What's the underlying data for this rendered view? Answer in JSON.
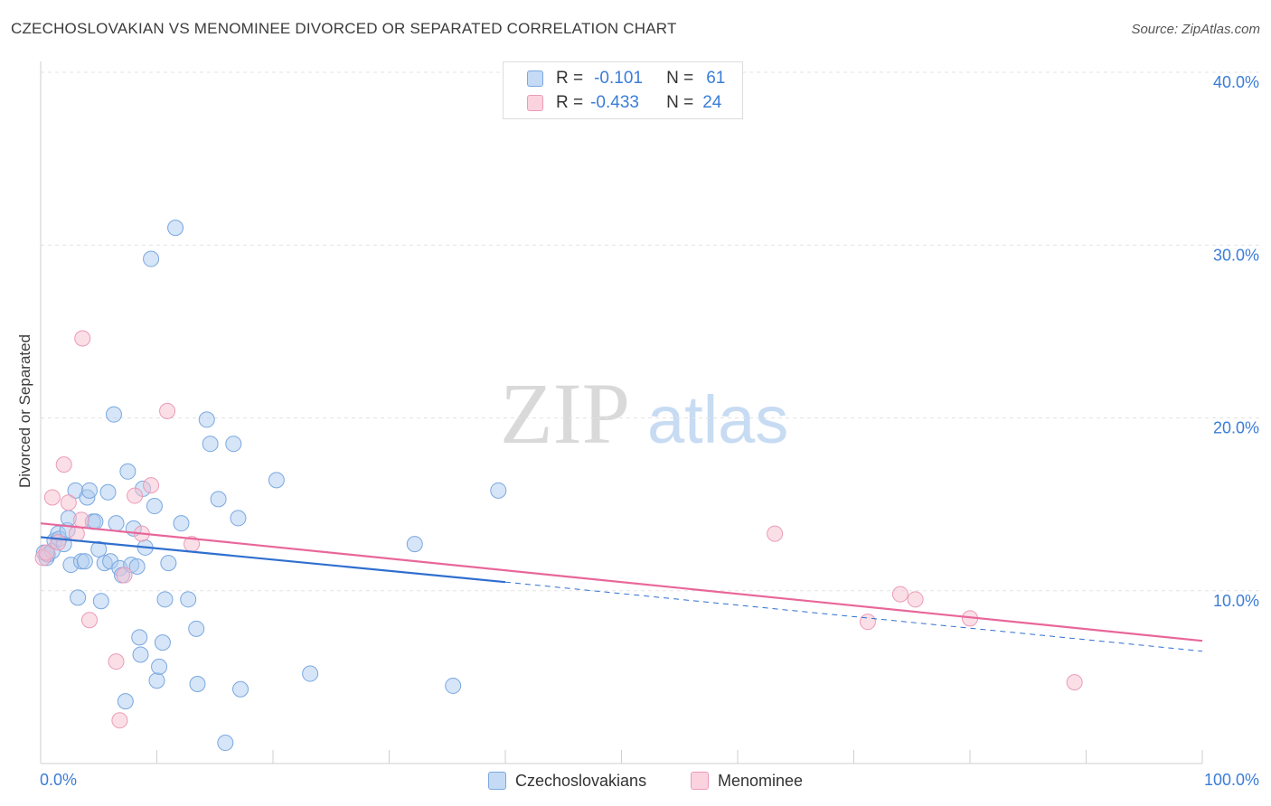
{
  "title": "CZECHOSLOVAKIAN VS MENOMINEE DIVORCED OR SEPARATED CORRELATION CHART",
  "source": "Source: ZipAtlas.com",
  "watermark": {
    "zip": "ZIP",
    "atlas": "atlas"
  },
  "legend": {
    "rows": [
      {
        "r_label": "R =",
        "r_value": "-0.101",
        "n_label": "N =",
        "n_value": "61",
        "color": "#aecbef"
      },
      {
        "r_label": "R =",
        "r_value": "-0.433",
        "n_label": "N =",
        "n_value": "24",
        "color": "#f7bfd0"
      }
    ]
  },
  "bottom_legend": [
    {
      "label": "Czechoslovakians",
      "color": "#aecbef"
    },
    {
      "label": "Menominee",
      "color": "#f7bfd0"
    }
  ],
  "chart_data": {
    "type": "scatter",
    "title": "CZECHOSLOVAKIAN VS MENOMINEE DIVORCED OR SEPARATED CORRELATION CHART",
    "xlabel": "",
    "ylabel": "Divorced or Separated",
    "xlim": [
      0,
      100
    ],
    "ylim": [
      0,
      40
    ],
    "x_tick_labels": [
      "0.0%",
      "100.0%"
    ],
    "y_ticks": [
      10,
      20,
      30,
      40
    ],
    "y_tick_labels": [
      "10.0%",
      "20.0%",
      "30.0%",
      "40.0%"
    ],
    "grid": "horizontal dashed",
    "colors": {
      "blue_line": "#2f6fcf",
      "pink_line": "#e8679a",
      "axis_text": "#3b7dd8"
    },
    "series": [
      {
        "name": "Czechoslovakians",
        "color": "#aecbef",
        "stroke": "#7aa8e0",
        "trend": {
          "x": [
            0,
            40
          ],
          "y": [
            13.1,
            10.5
          ],
          "dashed_to": [
            100,
            6.5
          ]
        },
        "points": [
          [
            0.3,
            12.2
          ],
          [
            0.5,
            11.9
          ],
          [
            0.6,
            12.1
          ],
          [
            1.0,
            12.3
          ],
          [
            1.2,
            12.9
          ],
          [
            1.5,
            13.3
          ],
          [
            1.6,
            13.0
          ],
          [
            2.0,
            12.7
          ],
          [
            2.3,
            13.5
          ],
          [
            2.4,
            14.2
          ],
          [
            2.6,
            11.5
          ],
          [
            3.0,
            15.8
          ],
          [
            3.2,
            9.6
          ],
          [
            3.5,
            11.7
          ],
          [
            3.8,
            11.7
          ],
          [
            4.0,
            15.4
          ],
          [
            4.2,
            15.8
          ],
          [
            4.5,
            14.0
          ],
          [
            4.7,
            14.0
          ],
          [
            5.0,
            12.4
          ],
          [
            5.2,
            9.4
          ],
          [
            5.5,
            11.6
          ],
          [
            5.8,
            15.7
          ],
          [
            6.0,
            11.7
          ],
          [
            6.3,
            20.2
          ],
          [
            6.5,
            13.9
          ],
          [
            6.8,
            11.3
          ],
          [
            7.0,
            10.9
          ],
          [
            7.3,
            3.6
          ],
          [
            7.5,
            16.9
          ],
          [
            7.8,
            11.5
          ],
          [
            8.0,
            13.6
          ],
          [
            8.3,
            11.4
          ],
          [
            8.5,
            7.3
          ],
          [
            8.6,
            6.3
          ],
          [
            8.8,
            15.9
          ],
          [
            9.0,
            12.5
          ],
          [
            9.5,
            29.2
          ],
          [
            9.8,
            14.9
          ],
          [
            10.0,
            4.8
          ],
          [
            10.2,
            5.6
          ],
          [
            10.5,
            7.0
          ],
          [
            10.7,
            9.5
          ],
          [
            11.0,
            11.6
          ],
          [
            11.6,
            31.0
          ],
          [
            12.1,
            13.9
          ],
          [
            12.7,
            9.5
          ],
          [
            13.4,
            7.8
          ],
          [
            13.5,
            4.6
          ],
          [
            14.3,
            19.9
          ],
          [
            14.6,
            18.5
          ],
          [
            15.3,
            15.3
          ],
          [
            15.9,
            1.2
          ],
          [
            16.6,
            18.5
          ],
          [
            17.0,
            14.2
          ],
          [
            17.2,
            4.3
          ],
          [
            20.3,
            16.4
          ],
          [
            23.2,
            5.2
          ],
          [
            32.2,
            12.7
          ],
          [
            35.5,
            4.5
          ],
          [
            39.4,
            15.8
          ]
        ]
      },
      {
        "name": "Menominee",
        "color": "#f7bfd0",
        "stroke": "#eb9bb8",
        "trend": {
          "x": [
            0,
            100
          ],
          "y": [
            13.9,
            7.1
          ]
        },
        "points": [
          [
            0.2,
            11.9
          ],
          [
            1.0,
            15.4
          ],
          [
            1.5,
            12.8
          ],
          [
            2.0,
            17.3
          ],
          [
            2.4,
            15.1
          ],
          [
            3.1,
            13.3
          ],
          [
            3.5,
            14.1
          ],
          [
            3.6,
            24.6
          ],
          [
            4.2,
            8.3
          ],
          [
            6.5,
            5.9
          ],
          [
            6.8,
            2.5
          ],
          [
            7.2,
            10.9
          ],
          [
            8.1,
            15.5
          ],
          [
            8.7,
            13.3
          ],
          [
            9.5,
            16.1
          ],
          [
            10.9,
            20.4
          ],
          [
            13.0,
            12.7
          ],
          [
            63.2,
            13.3
          ],
          [
            71.2,
            8.2
          ],
          [
            74.0,
            9.8
          ],
          [
            75.3,
            9.5
          ],
          [
            80.0,
            8.4
          ],
          [
            89.0,
            4.7
          ],
          [
            0.5,
            12.2
          ]
        ]
      }
    ]
  }
}
